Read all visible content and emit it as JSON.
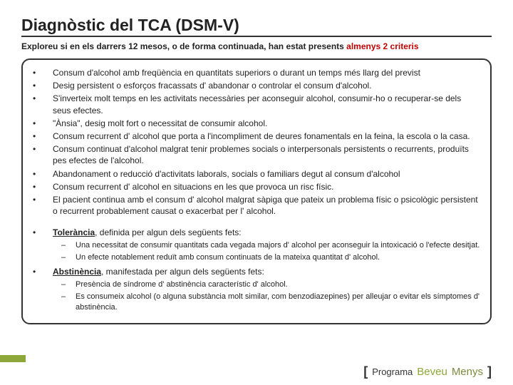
{
  "title": "Diagnòstic del TCA (DSM-V)",
  "subtitle_pre": "Exploreu si en els darrers 12 mesos, o de forma continuada, han estat presents ",
  "subtitle_hl": "almenys 2 criteris",
  "criteria": [
    "Consum d'alcohol amb freqüència en quantitats superiors o durant un temps més llarg del previst",
    "Desig persistent o esforços fracassats d' abandonar o controlar el consum d'alcohol.",
    "S'inverteix molt temps en les activitats necessàries per aconseguir alcohol, consumir-ho o recuperar-se dels seus efectes.",
    "\"Ànsia\", desig molt fort o necessitat de consumir alcohol.",
    "Consum recurrent d' alcohol que porta a l'incompliment de deures fonamentals en la feina, la escola o la casa.",
    "Consum continuat d'alcohol malgrat tenir problemes socials o interpersonals persistents o recurrents, produïts pes efectes de l'alcohol.",
    "Abandonament o reducció d'activitats laborals, socials o familiars degut al consum d'alcohol",
    "Consum recurrent d' alcohol en situacions en les que provoca un risc físic.",
    "El pacient continua amb el consum d' alcohol malgrat sàpiga que pateix un problema físic o psicològic persistent o recurrent probablement causat o exacerbat per l' alcohol."
  ],
  "tolerancia_label": "Tolerància",
  "tolerancia_rest": ", definida per algun dels següents fets:",
  "tolerancia_items": [
    "Una necessitat de consumir quantitats cada vegada majors d' alcohol per aconseguir la intoxicació o l'efecte desitjat.",
    "Un efecte notablement reduït  amb consum continuats de la mateixa quantitat d' alcohol."
  ],
  "abstinencia_label": "Abstinència",
  "abstinencia_rest": ", manifestada per algun dels següents fets:",
  "abstinencia_items": [
    "Presència de síndrome d' abstinència característic d' alcohol.",
    "Es consumeix alcohol (o alguna substància molt similar, com benzodiazepines) per alleujar o evitar els símptomes d' abstinència."
  ],
  "footer": {
    "bracket_open": "[",
    "prog": "Programa",
    "brand1": "Beveu",
    "brand2": "Menys",
    "bracket_close": "]"
  },
  "colors": {
    "accent_green": "#8da73a",
    "highlight_red": "#c00000",
    "text": "#222222",
    "border": "#333333"
  }
}
